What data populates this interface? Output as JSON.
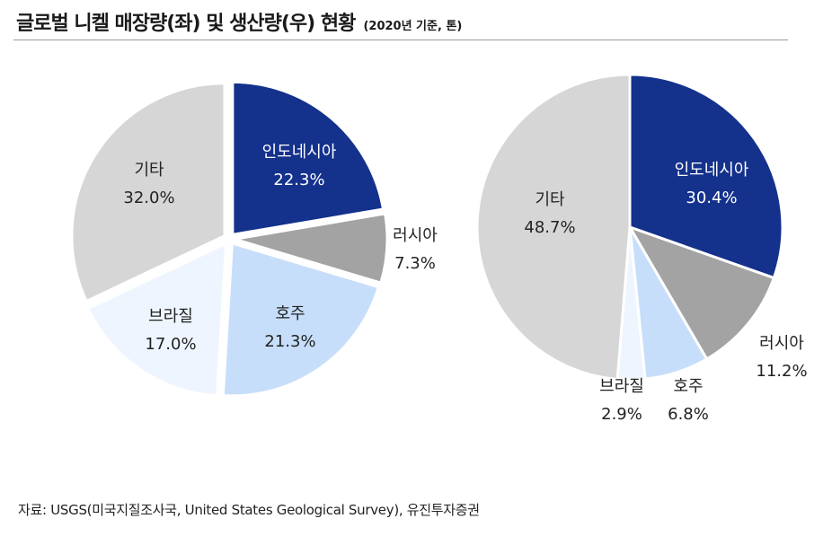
{
  "title": {
    "main": "글로벌 니켈 매장량(좌) 및 생산량(우) 현황",
    "sub": "(2020년 기준, 톤)"
  },
  "source": "자료: USGS(미국지질조사국, United States Geological Survey), 유진투자증권",
  "colors": {
    "인도네시아": "#14318c",
    "러시아": "#a3a3a3",
    "호주": "#c7defa",
    "브라질": "#eef5fe",
    "기타": "#d6d6d6"
  },
  "chart_data": [
    {
      "type": "pie",
      "categories": [
        "인도네시아",
        "러시아",
        "호주",
        "브라질",
        "기타"
      ],
      "values": [
        22.3,
        7.3,
        21.3,
        17.0,
        32.0
      ],
      "value_labels": [
        "22.3%",
        "7.3%",
        "21.3%",
        "17.0%",
        "32.0%"
      ],
      "exploded": true
    },
    {
      "type": "pie",
      "categories": [
        "인도네시아",
        "러시아",
        "호주",
        "브라질",
        "기타"
      ],
      "values": [
        30.4,
        11.2,
        6.8,
        2.9,
        48.7
      ],
      "value_labels": [
        "30.4%",
        "11.2%",
        "6.8%",
        "2.9%",
        "48.7%"
      ],
      "exploded": false
    }
  ]
}
